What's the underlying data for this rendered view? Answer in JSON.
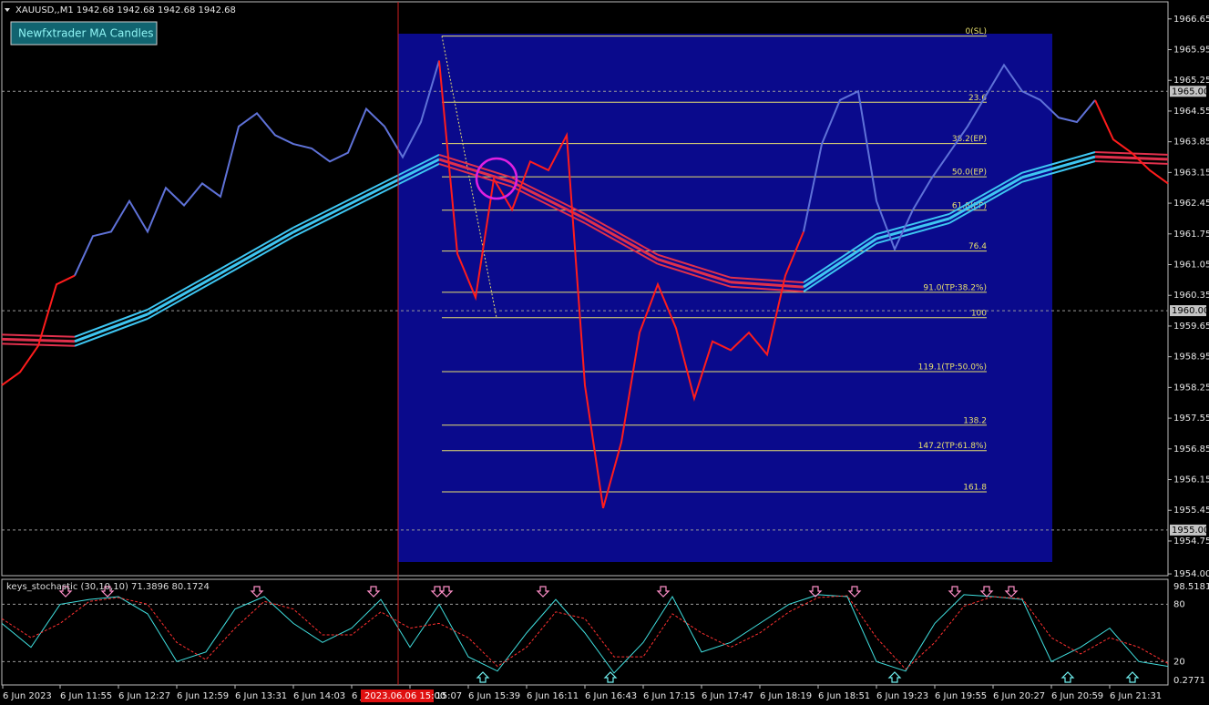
{
  "header": {
    "symbol_info": "XAUUSD,,M1  1942.68 1942.68 1942.68 1942.68",
    "button": "Newfxtrader MA Candles"
  },
  "chart_data": [
    {
      "type": "ma-candles",
      "up_color": "#5f72d8",
      "down_color": "#ff1c1c",
      "ma_up_color": "#3ec6f2",
      "ma_down_color": "#e0304c",
      "ylim": [
        1953.96,
        1967.04
      ],
      "yticks": [
        1966.65,
        1965.95,
        1965.25,
        1964.55,
        1963.85,
        1963.15,
        1962.45,
        1961.75,
        1961.05,
        1960.35,
        1959.65,
        1958.95,
        1958.25,
        1957.55,
        1956.85,
        1956.15,
        1955.45,
        1954.75,
        {
          "value": 1954,
          "label": "1954.00"
        }
      ],
      "price_marks": [
        {
          "value": 1965,
          "label": "1965.00"
        },
        {
          "value": 1960,
          "label": "1960.00"
        },
        {
          "value": 1955,
          "label": "1955.00"
        }
      ],
      "series": [
        {
          "values": [
            1958.3,
            1958.6,
            1959.2,
            1960.6,
            1960.8,
            1961.7,
            1961.8,
            1962.5,
            1961.8,
            1962.8,
            1962.4,
            1962.9,
            1962.6,
            1964.2,
            1964.5,
            1964.0,
            1963.8,
            1963.7,
            1963.4,
            1963.6,
            1964.6,
            1964.2,
            1963.5,
            1964.3,
            1965.7,
            1961.3,
            1960.3,
            1963.0,
            1962.3,
            1963.4,
            1963.2,
            1964.0,
            1958.3,
            1955.5,
            1957.0,
            1959.5,
            1960.6,
            1959.6,
            1958.0,
            1959.3,
            1959.1,
            1959.5,
            1959.0,
            1960.8,
            1961.8,
            1963.8,
            1964.8,
            1965.0,
            1962.5,
            1961.4,
            1962.3,
            1963.0,
            1963.6,
            1964.2,
            1964.9,
            1965.6,
            1965.0,
            1964.8,
            1964.4,
            1964.3,
            1964.8,
            1963.9,
            1963.6,
            1963.2,
            1962.9
          ]
        },
        {
          "values": [
            1959.35,
            1959.3,
            1959.92,
            1960.85,
            1961.79,
            1962.62,
            1963.45,
            1962.93,
            1962.1,
            1961.17,
            1960.65,
            1960.54,
            1961.64,
            1962.1,
            1963.04,
            1963.51,
            1963.45
          ]
        }
      ],
      "fib_color": "#e8e070",
      "fib_levels": [
        {
          "label": "0(SL)",
          "value": 1966.26
        },
        {
          "label": "23.6",
          "value": 1964.75
        },
        {
          "label": "38.2(EP)",
          "value": 1963.81
        },
        {
          "label": "50.0(EP)",
          "value": 1963.05
        },
        {
          "label": "61.8(EP)",
          "value": 1962.29
        },
        {
          "label": "76.4",
          "value": 1961.36
        },
        {
          "label": "91.0(TP:38.2%)",
          "value": 1960.42
        },
        {
          "label": "100",
          "value": 1959.84
        },
        {
          "label": "119.1(TP:50.0%)",
          "value": 1958.61
        },
        {
          "label": "138.2",
          "value": 1957.39
        },
        {
          "label": "147.2(TP:61.8%)",
          "value": 1956.81
        },
        {
          "label": "161.8",
          "value": 1955.87
        }
      ],
      "time_labels": [
        "6 Jun 2023",
        "6 Jun 11:55",
        "6 Jun 12:27",
        "6 Jun 12:59",
        "6 Jun 13:31",
        "6 Jun 14:03",
        "6 J",
        "6 Jun 15:07",
        "6 Jun 15:39",
        "6 Jun 16:11",
        "6 Jun 16:43",
        "6 Jun 17:15",
        "6 Jun 17:47",
        "6 Jun 18:19",
        "6 Jun 18:51",
        "6 Jun 19:23",
        "6 Jun 19:55",
        "6 Jun 20:27",
        "6 Jun 20:59",
        "6 Jun 21:31"
      ],
      "cursor_time": "2023.06.06 15:00"
    },
    {
      "type": "stochastic",
      "title": "keys_stochastic (30,10,10) 71.3896 80.1724",
      "ylim": [
        -4.49,
        106.14
      ],
      "yticks": [
        98.5181,
        80,
        20,
        0.2771
      ],
      "series": [
        {
          "color": "#40e0e0",
          "values": [
            60,
            35,
            80,
            85,
            88,
            70,
            20,
            30,
            75,
            88,
            60,
            40,
            55,
            85,
            35,
            80,
            25,
            10,
            50,
            85,
            50,
            8,
            40,
            88,
            30,
            40,
            60,
            80,
            90,
            88,
            20,
            10,
            60,
            90,
            88,
            85,
            20,
            35,
            55,
            20,
            15
          ]
        },
        {
          "color": "#ff3030",
          "values": [
            65,
            45,
            60,
            83,
            87,
            80,
            40,
            22,
            55,
            83,
            75,
            48,
            48,
            72,
            55,
            60,
            45,
            15,
            35,
            72,
            65,
            25,
            25,
            70,
            50,
            35,
            50,
            72,
            87,
            89,
            45,
            12,
            40,
            78,
            88,
            86,
            45,
            28,
            45,
            35,
            18
          ]
        }
      ]
    }
  ]
}
